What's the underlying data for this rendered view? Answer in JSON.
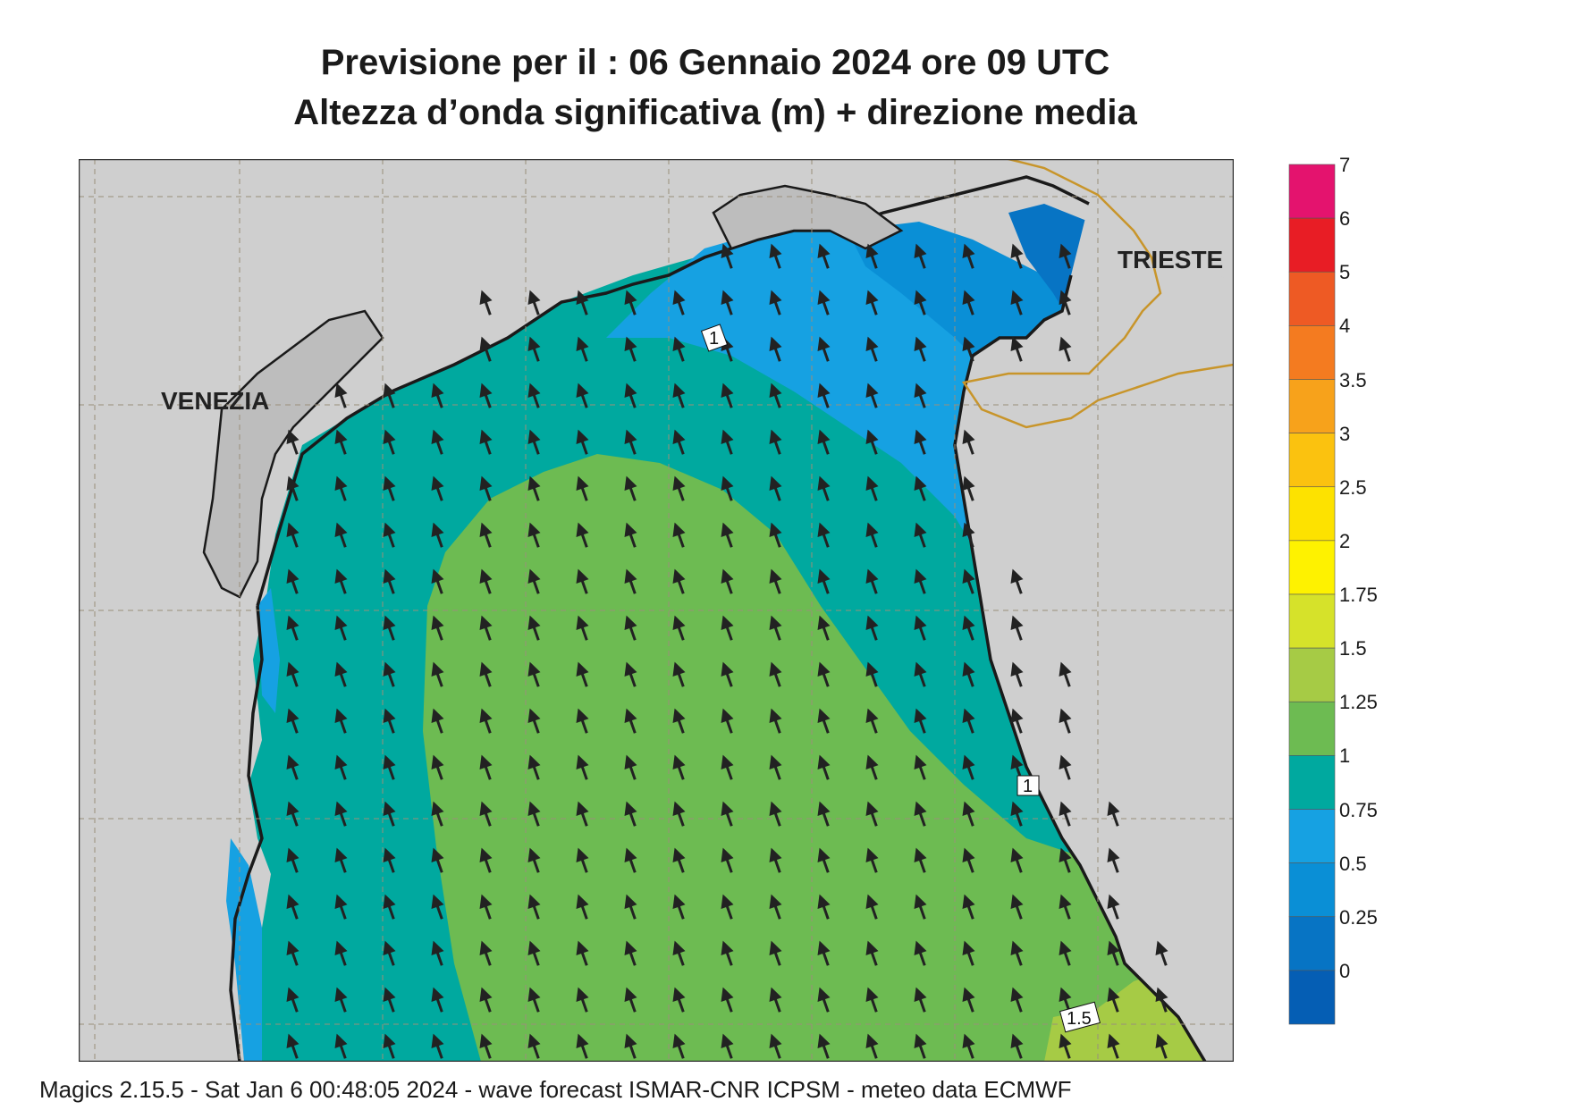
{
  "title": {
    "line1": "Previsione per il  :  06  Gennaio  2024    ore 09 UTC",
    "line2": "Altezza d’onda significativa (m) + direzione media"
  },
  "map": {
    "cities": [
      {
        "name": "VENEZIA"
      },
      {
        "name": "TRIESTE"
      }
    ],
    "contour_labels": [
      "1",
      "1",
      "1.5"
    ],
    "arrow_direction": "north-northwest",
    "colors": {
      "land": "#cfcfcf",
      "coast": "#1a1a1a",
      "lagoon": "#bdbdbd",
      "border": "#c8952a",
      "grid": "#9a8f7a"
    }
  },
  "legend": {
    "labels": [
      "7",
      "6",
      "5",
      "4",
      "3.5",
      "3",
      "2.5",
      "2",
      "1.75",
      "1.5",
      "1.25",
      "1",
      "0.75",
      "0.5",
      "0.25",
      "0"
    ],
    "colors": [
      "#e4136e",
      "#e81d25",
      "#ee5a24",
      "#f47b20",
      "#f7a21b",
      "#fbc20f",
      "#fde200",
      "#fef200",
      "#d6e22a",
      "#a6cb45",
      "#6dbb52",
      "#00a99f",
      "#16a1e2",
      "#0a8fd6",
      "#0774c4",
      "#055eb4"
    ]
  },
  "footer": "Magics 2.15.5 - Sat Jan  6 00:48:05 2024 - wave forecast  ISMAR-CNR  ICPSM - meteo data    ECMWF"
}
